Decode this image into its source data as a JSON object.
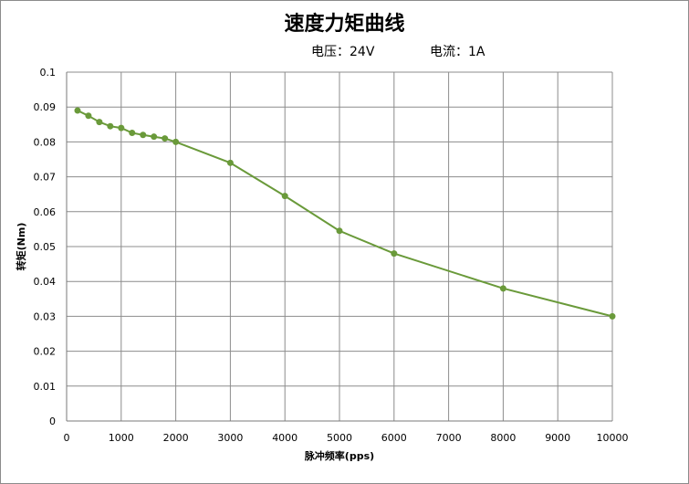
{
  "chart_data": {
    "type": "line",
    "title": "速度力矩曲线",
    "subtitle_voltage": "电压：24V",
    "subtitle_current": "电流：1A",
    "xlabel": "脉冲频率(pps)",
    "ylabel": "转矩(Nm)",
    "xlim": [
      0,
      10000
    ],
    "ylim": [
      0,
      0.1
    ],
    "x_ticks": [
      "0",
      "1000",
      "2000",
      "3000",
      "4000",
      "5000",
      "6000",
      "7000",
      "8000",
      "9000",
      "10000"
    ],
    "y_ticks": [
      "0",
      "0.01",
      "0.02",
      "0.03",
      "0.04",
      "0.05",
      "0.06",
      "0.07",
      "0.08",
      "0.09",
      "0.1"
    ],
    "grid": true,
    "series_color": "#6a9a3a",
    "x": [
      200,
      400,
      600,
      800,
      1000,
      1200,
      1400,
      1600,
      1800,
      2000,
      3000,
      4000,
      5000,
      6000,
      8000,
      10000
    ],
    "y": [
      0.089,
      0.0875,
      0.0857,
      0.0845,
      0.084,
      0.0826,
      0.082,
      0.0815,
      0.081,
      0.08,
      0.074,
      0.0645,
      0.0545,
      0.048,
      0.038,
      0.03
    ]
  }
}
